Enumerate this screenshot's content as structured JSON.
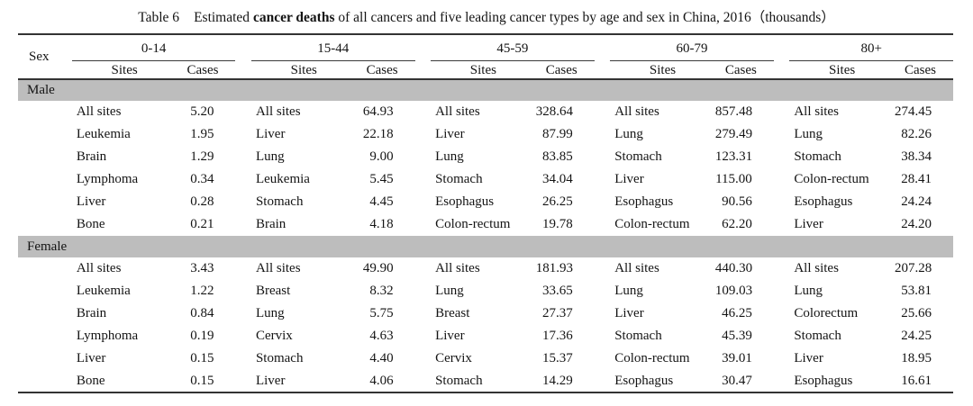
{
  "caption": {
    "table_number": "Table 6",
    "text_before_bold": "Estimated ",
    "bold_text": "cancer deaths",
    "text_after_bold": " of all cancers and five leading cancer types by age and sex in China, 2016（thousands）"
  },
  "table": {
    "sex_header": "Sex",
    "age_groups": [
      "0-14",
      "15-44",
      "45-59",
      "60-79",
      "80+"
    ],
    "site_header": "Sites",
    "cases_header": "Cases",
    "sections": [
      {
        "sex": "Male",
        "rows": [
          [
            {
              "site": "All sites",
              "cases": "5.20"
            },
            {
              "site": "All sites",
              "cases": "64.93"
            },
            {
              "site": "All sites",
              "cases": "328.64"
            },
            {
              "site": "All sites",
              "cases": "857.48"
            },
            {
              "site": "All sites",
              "cases": "274.45"
            }
          ],
          [
            {
              "site": "Leukemia",
              "cases": "1.95"
            },
            {
              "site": "Liver",
              "cases": "22.18"
            },
            {
              "site": "Liver",
              "cases": "87.99"
            },
            {
              "site": "Lung",
              "cases": "279.49"
            },
            {
              "site": "Lung",
              "cases": "82.26"
            }
          ],
          [
            {
              "site": "Brain",
              "cases": "1.29"
            },
            {
              "site": "Lung",
              "cases": "9.00"
            },
            {
              "site": "Lung",
              "cases": "83.85"
            },
            {
              "site": "Stomach",
              "cases": "123.31"
            },
            {
              "site": "Stomach",
              "cases": "38.34"
            }
          ],
          [
            {
              "site": "Lymphoma",
              "cases": "0.34"
            },
            {
              "site": "Leukemia",
              "cases": "5.45"
            },
            {
              "site": "Stomach",
              "cases": "34.04"
            },
            {
              "site": "Liver",
              "cases": "115.00"
            },
            {
              "site": "Colon-rectum",
              "cases": "28.41"
            }
          ],
          [
            {
              "site": "Liver",
              "cases": "0.28"
            },
            {
              "site": "Stomach",
              "cases": "4.45"
            },
            {
              "site": "Esophagus",
              "cases": "26.25"
            },
            {
              "site": "Esophagus",
              "cases": "90.56"
            },
            {
              "site": "Esophagus",
              "cases": "24.24"
            }
          ],
          [
            {
              "site": "Bone",
              "cases": "0.21"
            },
            {
              "site": "Brain",
              "cases": "4.18"
            },
            {
              "site": "Colon-rectum",
              "cases": "19.78"
            },
            {
              "site": "Colon-rectum",
              "cases": "62.20"
            },
            {
              "site": "Liver",
              "cases": "24.20"
            }
          ]
        ]
      },
      {
        "sex": "Female",
        "rows": [
          [
            {
              "site": "All sites",
              "cases": "3.43"
            },
            {
              "site": "All sites",
              "cases": "49.90"
            },
            {
              "site": "All sites",
              "cases": "181.93"
            },
            {
              "site": "All sites",
              "cases": "440.30"
            },
            {
              "site": "All sites",
              "cases": "207.28"
            }
          ],
          [
            {
              "site": "Leukemia",
              "cases": "1.22"
            },
            {
              "site": "Breast",
              "cases": "8.32"
            },
            {
              "site": "Lung",
              "cases": "33.65"
            },
            {
              "site": "Lung",
              "cases": "109.03"
            },
            {
              "site": "Lung",
              "cases": "53.81"
            }
          ],
          [
            {
              "site": "Brain",
              "cases": "0.84"
            },
            {
              "site": "Lung",
              "cases": "5.75"
            },
            {
              "site": "Breast",
              "cases": "27.37"
            },
            {
              "site": "Liver",
              "cases": "46.25"
            },
            {
              "site": "Colorectum",
              "cases": "25.66"
            }
          ],
          [
            {
              "site": "Lymphoma",
              "cases": "0.19"
            },
            {
              "site": "Cervix",
              "cases": "4.63"
            },
            {
              "site": "Liver",
              "cases": "17.36"
            },
            {
              "site": "Stomach",
              "cases": "45.39"
            },
            {
              "site": "Stomach",
              "cases": "24.25"
            }
          ],
          [
            {
              "site": "Liver",
              "cases": "0.15"
            },
            {
              "site": "Stomach",
              "cases": "4.40"
            },
            {
              "site": "Cervix",
              "cases": "15.37"
            },
            {
              "site": "Colon-rectum",
              "cases": "39.01"
            },
            {
              "site": "Liver",
              "cases": "18.95"
            }
          ],
          [
            {
              "site": "Bone",
              "cases": "0.15"
            },
            {
              "site": "Liver",
              "cases": "4.06"
            },
            {
              "site": "Stomach",
              "cases": "14.29"
            },
            {
              "site": "Esophagus",
              "cases": "30.47"
            },
            {
              "site": "Esophagus",
              "cases": "16.61"
            }
          ]
        ]
      }
    ]
  },
  "colors": {
    "section_band": "#bdbdbd",
    "rule": "#333333",
    "text": "#141414",
    "background": "#ffffff"
  }
}
